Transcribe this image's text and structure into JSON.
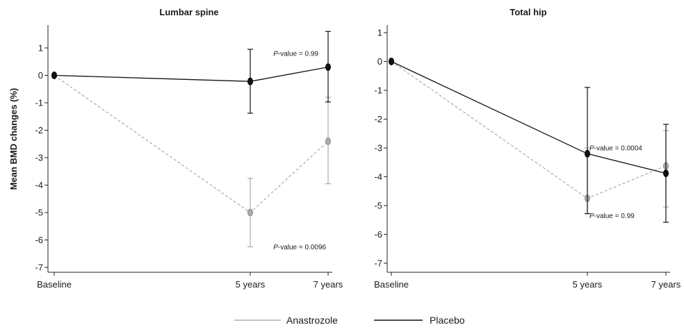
{
  "chart_data": [
    {
      "type": "line",
      "title": "Lumbar spine",
      "ylabel": "Mean BMD changes (%)",
      "xlabel": "",
      "x_ticks": [
        "Baseline",
        "5 years",
        "7 years"
      ],
      "x_values": [
        0,
        5,
        7
      ],
      "ylim": [
        -7.3,
        1.7
      ],
      "y_ticks": [
        "1",
        "0",
        "-1",
        "-2",
        "-3",
        "-4",
        "-5",
        "-6",
        "-7"
      ],
      "series": [
        {
          "name": "Anastrozole",
          "color": "#aaaaaa",
          "values": [
            0,
            -5.0,
            -2.4
          ],
          "err_low": [
            0,
            -6.25,
            -3.95
          ],
          "err_high": [
            0,
            -3.75,
            -0.8
          ]
        },
        {
          "name": "Placebo",
          "color": "#111111",
          "values": [
            0,
            -0.22,
            0.3
          ],
          "err_low": [
            0,
            -1.38,
            -0.97
          ],
          "err_high": [
            0,
            0.95,
            1.6
          ]
        }
      ],
      "annotations": [
        {
          "text_italic": "P",
          "text": "-value = 0.99",
          "x": 5.6,
          "y": 0.8
        },
        {
          "text_italic": "P",
          "text": "-value = 0.0096",
          "x": 5.6,
          "y": -6.25
        }
      ]
    },
    {
      "type": "line",
      "title": "Total hip",
      "ylabel": "",
      "xlabel": "",
      "x_ticks": [
        "Baseline",
        "5 years",
        "7 years"
      ],
      "x_values": [
        0,
        5,
        7
      ],
      "ylim": [
        -7.3,
        1.5
      ],
      "y_ticks": [
        "1",
        "0",
        "-1",
        "-2",
        "-3",
        "-4",
        "-5",
        "-6",
        "-7"
      ],
      "series": [
        {
          "name": "Anastrozole",
          "color": "#aaaaaa",
          "values": [
            0,
            -4.75,
            -3.62
          ],
          "err_low": [
            0,
            -5.28,
            -5.05
          ],
          "err_high": [
            0,
            -3.0,
            -2.4
          ]
        },
        {
          "name": "Placebo",
          "color": "#111111",
          "values": [
            0,
            -3.2,
            -3.88
          ],
          "err_low": [
            0,
            -5.28,
            -5.58
          ],
          "err_high": [
            0,
            -0.9,
            -2.18
          ]
        }
      ],
      "annotations": [
        {
          "text_italic": "P",
          "text": "-value = 0.0004",
          "x": 5.05,
          "y": -3.0
        },
        {
          "text_italic": "P",
          "text": "-value = 0.99",
          "x": 5.05,
          "y": -5.35
        }
      ]
    }
  ],
  "legend": {
    "placement": "bottom-center",
    "items": [
      {
        "label": "Anastrozole",
        "color": "#aaaaaa"
      },
      {
        "label": "Placebo",
        "color": "#111111"
      }
    ]
  }
}
